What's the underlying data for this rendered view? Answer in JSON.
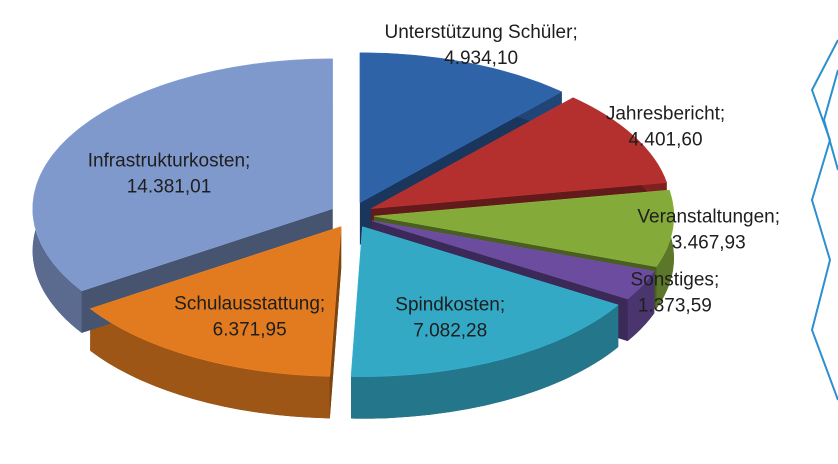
{
  "chart_data": {
    "type": "pie3d",
    "categories": [
      "Unterstützung Schüler",
      "Jahresbericht",
      "Veranstaltungen",
      "Sonstiges",
      "Spindkosten",
      "Schulausstattung",
      "Infrastrukturkosten"
    ],
    "values": [
      4934.1,
      4401.6,
      3467.93,
      1373.59,
      7082.28,
      6371.95,
      14381.01
    ],
    "value_labels": [
      "4.934,10",
      "4.401,60",
      "3.467,93",
      "1.373,59",
      "7.082,28",
      "6.371,95",
      "14.381,01"
    ],
    "label_separator": ";",
    "colors": [
      "#2f63a8",
      "#b3302f",
      "#84aa3a",
      "#6b4c9e",
      "#33a9c6",
      "#e27b1f",
      "#8099cc"
    ]
  }
}
